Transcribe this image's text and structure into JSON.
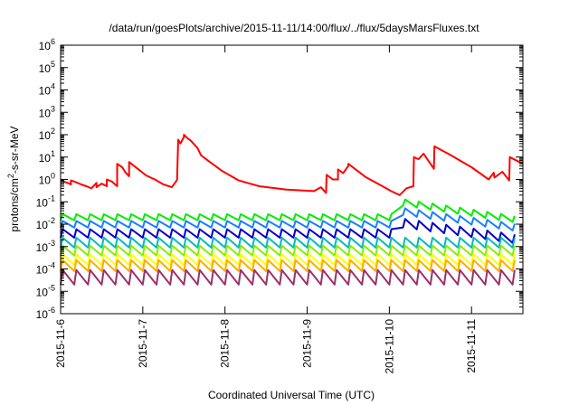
{
  "chart_data": {
    "type": "line",
    "title": "/data/run/goesPlots/archive/2015-11-11/14:00/flux/../flux/5daysMarsFluxes.txt",
    "xlabel": "Coordinated Universal Time (UTC)",
    "ylabel": {
      "base": "protons/cm",
      "sup": "2",
      "rest": "-s-sr-MeV"
    },
    "x_axis": {
      "type": "date",
      "range": [
        "2015-11-06",
        "2015-11-11T15:00"
      ],
      "ticks": [
        "2015-11-6",
        "2015-11-7",
        "2015-11-8",
        "2015-11-9",
        "2015-11-10",
        "2015-11-11"
      ]
    },
    "y_axis": {
      "scale": "log",
      "range": [
        1e-06,
        1000000.0
      ],
      "tick_exponents": [
        -6,
        -5,
        -4,
        -3,
        -2,
        -1,
        0,
        1,
        2,
        3,
        4,
        5,
        6
      ],
      "tick_base": "10"
    },
    "grid": false,
    "legend": "none",
    "series": [
      {
        "color": "#ff0000",
        "x": [
          "2015-11-06T00:00",
          "2015-11-06T01:00",
          "2015-11-06T02:00",
          "2015-11-06T03:00",
          "2015-11-06T03:00",
          "2015-11-06T04:30",
          "2015-11-06T06:00",
          "2015-11-06T07:30",
          "2015-11-06T09:00",
          "2015-11-06T10:30",
          "2015-11-06T10:30",
          "2015-11-06T12:00",
          "2015-11-06T13:30",
          "2015-11-06T13:30",
          "2015-11-06T15:00",
          "2015-11-06T16:30",
          "2015-11-06T16:30",
          "2015-11-06T18:00",
          "2015-11-06T19:00",
          "2015-11-06T20:00",
          "2015-11-06T20:00",
          "2015-11-06T22:30",
          "2015-11-07T01:00",
          "2015-11-07T03:30",
          "2015-11-07T06:00",
          "2015-11-07T08:30",
          "2015-11-07T10:00",
          "2015-11-07T10:20",
          "2015-11-07T11:00",
          "2015-11-07T12:00",
          "2015-11-07T12:00",
          "2015-11-07T13:00",
          "2015-11-07T14:00",
          "2015-11-07T16:00",
          "2015-11-07T17:00",
          "2015-11-07T19:00",
          "2015-11-07T23:00",
          "2015-11-08T04:00",
          "2015-11-08T10:00",
          "2015-11-08T18:00",
          "2015-11-09T02:00",
          "2015-11-09T04:00",
          "2015-11-09T05:30",
          "2015-11-09T05:40",
          "2015-11-09T07:30",
          "2015-11-09T09:00",
          "2015-11-09T09:00",
          "2015-11-09T10:30",
          "2015-11-09T12:00",
          "2015-11-09T12:00",
          "2015-11-09T17:00",
          "2015-11-09T22:00",
          "2015-11-10T00:30",
          "2015-11-10T03:00",
          "2015-11-10T05:00",
          "2015-11-10T07:00",
          "2015-11-10T07:10",
          "2015-11-10T08:30",
          "2015-11-10T10:00",
          "2015-11-10T13:00",
          "2015-11-10T13:10",
          "2015-11-10T18:00",
          "2015-11-11T00:00",
          "2015-11-11T05:00",
          "2015-11-11T06:30",
          "2015-11-11T06:40",
          "2015-11-11T09:00",
          "2015-11-11T11:00",
          "2015-11-11T11:10",
          "2015-11-11T15:00"
        ],
        "y": [
          1.0,
          0.8,
          0.7,
          0.6,
          0.9,
          0.75,
          0.6,
          0.5,
          0.4,
          0.7,
          0.45,
          0.65,
          0.5,
          1.0,
          0.8,
          0.5,
          5.0,
          3.5,
          2.0,
          1.4,
          6.0,
          3.0,
          1.5,
          1.0,
          0.6,
          0.45,
          0.95,
          60,
          40,
          80,
          100,
          70,
          55,
          25,
          12,
          7,
          2.5,
          0.9,
          0.5,
          0.35,
          0.3,
          0.45,
          0.25,
          1.6,
          1.0,
          1.0,
          2.8,
          1.9,
          4.0,
          5.0,
          1.3,
          0.5,
          0.3,
          0.2,
          0.4,
          0.5,
          10,
          8,
          14,
          3,
          30,
          12,
          3.5,
          1.0,
          2.0,
          1.2,
          2.2,
          0.9,
          10,
          5
        ]
      },
      {
        "color": "#00ee00",
        "base": 0.015,
        "spike": 0.028,
        "period_hours": 4,
        "event": {
          "start": "2015-11-10T01:00",
          "peak": 0.15,
          "end": "2015-11-11T15:00",
          "end_value": 0.02
        }
      },
      {
        "color": "#1a7fff",
        "base": 0.007,
        "spike": 0.014,
        "period_hours": 4,
        "event": {
          "start": "2015-11-10T01:00",
          "peak": 0.06,
          "end": "2015-11-11T15:00",
          "end_value": 0.009
        }
      },
      {
        "color": "#0000cc",
        "base": 0.0025,
        "spike": 0.006,
        "period_hours": 4,
        "event": {
          "start": "2015-11-10T01:00",
          "peak": 0.02,
          "end": "2015-11-11T15:00",
          "end_value": 0.003
        }
      },
      {
        "color": "#00bbbb",
        "base": 0.0009,
        "spike": 0.0025,
        "period_hours": 4
      },
      {
        "color": "#88ee00",
        "base": 0.0004,
        "spike": 0.0011,
        "period_hours": 4
      },
      {
        "color": "#ffff00",
        "base": 0.00015,
        "spike": 0.00045,
        "period_hours": 4
      },
      {
        "color": "#ffaa00",
        "base": 8e-05,
        "spike": 0.00025,
        "period_hours": 4
      },
      {
        "color": "#993366",
        "base": 2e-05,
        "spike": 9e-05,
        "period_hours": 4
      }
    ]
  }
}
